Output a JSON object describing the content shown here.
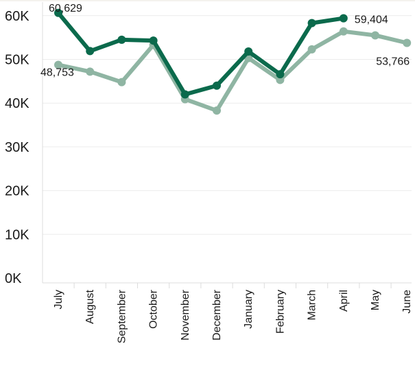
{
  "chart_data": {
    "type": "line",
    "title": "",
    "xlabel": "",
    "ylabel": "",
    "categories": [
      "July",
      "August",
      "September",
      "October",
      "November",
      "December",
      "January",
      "February",
      "March",
      "April",
      "May",
      "June"
    ],
    "ylim": [
      0,
      64000
    ],
    "y_ticks": [
      0,
      10000,
      20000,
      30000,
      40000,
      50000,
      60000
    ],
    "y_tick_labels": [
      "0K",
      "10K",
      "20K",
      "30K",
      "40K",
      "50K",
      "60K"
    ],
    "grid": "horizontal",
    "legend": "none",
    "series": [
      {
        "color": "#8fb5a3",
        "values": [
          48753,
          47200,
          44800,
          53300,
          40900,
          38300,
          50300,
          45300,
          52300,
          56400,
          55500,
          53766
        ]
      },
      {
        "color": "#0b6a4c",
        "values": [
          60629,
          51900,
          54500,
          54300,
          42000,
          44000,
          51800,
          46600,
          58300,
          59404,
          null,
          null
        ]
      }
    ],
    "annotations": [
      {
        "series": 1,
        "index": 0,
        "text": "60,629"
      },
      {
        "series": 0,
        "index": 0,
        "text": "48,753"
      },
      {
        "series": 1,
        "index": 9,
        "text": "59,404"
      },
      {
        "series": 0,
        "index": 11,
        "text": "53,766"
      }
    ]
  }
}
